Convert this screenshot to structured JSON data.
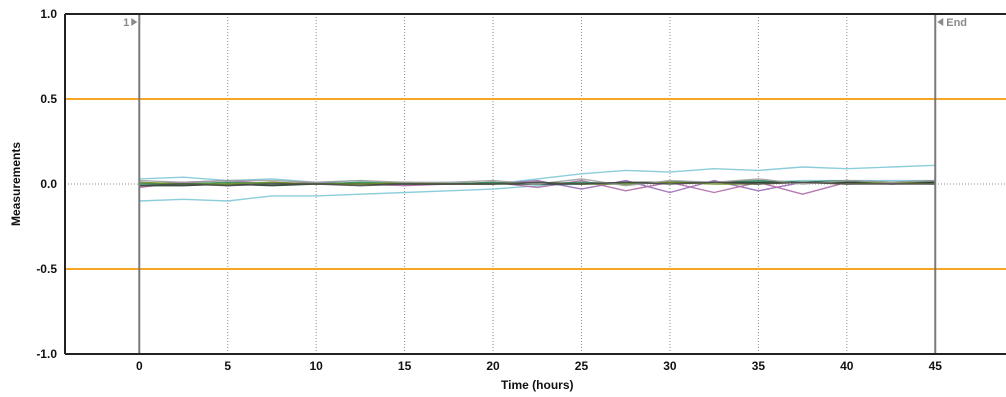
{
  "chart_data": {
    "type": "line",
    "title": "",
    "xlabel": "Time (hours)",
    "ylabel": "Measurements",
    "xlim": [
      -4.2,
      49
    ],
    "ylim": [
      -1.0,
      1.0
    ],
    "x_ticks": [
      0,
      5,
      10,
      15,
      20,
      25,
      30,
      35,
      40,
      45
    ],
    "y_ticks": [
      1.0,
      0.5,
      0.0,
      -0.5,
      -1.0
    ],
    "y_tick_labels": [
      "1.0",
      "0.5",
      "0.0",
      "-0.5",
      "-1.0"
    ],
    "grid": "vertical dotted at x ticks; dotted line at y=0",
    "legend": "none",
    "limit_lines": [
      {
        "y": 0.5,
        "color": "#f5a623"
      },
      {
        "y": -0.5,
        "color": "#f5a623"
      }
    ],
    "markers": [
      {
        "x": 0,
        "label": "1",
        "arrow": "right"
      },
      {
        "x": 45,
        "label": "End",
        "arrow": "left"
      }
    ],
    "x": [
      0,
      2.5,
      5,
      7.5,
      10,
      12.5,
      15,
      17.5,
      20,
      22.5,
      25,
      27.5,
      30,
      32.5,
      35,
      37.5,
      40,
      42.5,
      45
    ],
    "series": [
      {
        "color": "#7fc8d6",
        "values": [
          0.03,
          0.04,
          0.02,
          0.03,
          0.01,
          0.02,
          0.0,
          0.01,
          0.0,
          0.03,
          0.06,
          0.08,
          0.07,
          0.09,
          0.08,
          0.1,
          0.09,
          0.1,
          0.11
        ]
      },
      {
        "color": "#7fc8d6",
        "values": [
          -0.1,
          -0.09,
          -0.1,
          -0.07,
          -0.07,
          -0.06,
          -0.05,
          -0.04,
          -0.03,
          -0.01,
          0.0,
          0.0,
          0.01,
          0.01,
          0.01,
          0.02,
          0.02,
          0.02,
          0.02
        ]
      },
      {
        "color": "#9a6ab8",
        "values": [
          0.0,
          0.01,
          0.02,
          0.0,
          0.01,
          0.0,
          0.01,
          0.0,
          0.0,
          0.02,
          -0.03,
          0.02,
          -0.05,
          0.02,
          -0.04,
          0.01,
          0.02,
          0.0,
          0.01
        ]
      },
      {
        "color": "#b06aa8",
        "values": [
          -0.02,
          0.01,
          -0.01,
          0.01,
          0.0,
          0.0,
          -0.01,
          0.0,
          0.01,
          -0.02,
          0.02,
          -0.04,
          0.01,
          -0.05,
          0.01,
          -0.06,
          0.01,
          0.0,
          0.01
        ]
      },
      {
        "color": "#2e8b57",
        "values": [
          0.0,
          0.0,
          0.01,
          0.0,
          0.0,
          0.01,
          0.0,
          0.0,
          0.01,
          0.0,
          0.01,
          0.0,
          0.01,
          0.01,
          0.02,
          0.01,
          0.02,
          0.01,
          0.02
        ]
      },
      {
        "color": "#1f3d2a",
        "values": [
          -0.01,
          -0.01,
          0.0,
          -0.01,
          0.0,
          0.0,
          0.0,
          0.0,
          0.0,
          0.0,
          0.0,
          0.01,
          0.01,
          0.01,
          0.01,
          0.01,
          0.01,
          0.01,
          0.01
        ]
      },
      {
        "color": "#6b8e23",
        "values": [
          0.01,
          0.0,
          0.0,
          0.01,
          0.0,
          0.0,
          0.01,
          0.0,
          0.0,
          0.01,
          0.0,
          0.0,
          0.01,
          0.0,
          0.0,
          0.01,
          0.0,
          0.01,
          0.0
        ]
      },
      {
        "color": "#a0a0a0",
        "values": [
          0.02,
          0.01,
          0.02,
          0.02,
          0.01,
          0.02,
          0.01,
          0.01,
          0.02,
          0.0,
          0.03,
          -0.01,
          0.02,
          0.01,
          0.03,
          0.0,
          0.02,
          0.01,
          0.02
        ]
      },
      {
        "color": "#4a4a4a",
        "values": [
          -0.01,
          0.0,
          -0.01,
          0.0,
          0.0,
          -0.01,
          0.0,
          0.0,
          0.0,
          0.01,
          0.0,
          0.01,
          0.0,
          0.01,
          0.0,
          0.01,
          0.0,
          0.0,
          0.0
        ]
      }
    ]
  }
}
